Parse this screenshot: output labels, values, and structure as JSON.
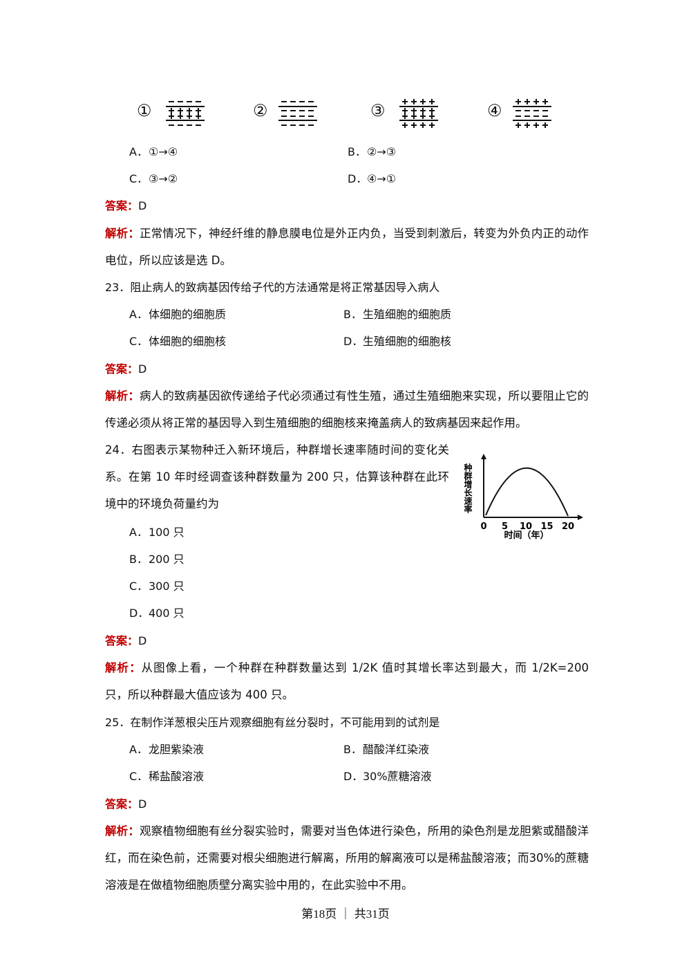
{
  "q22_tail": {
    "figure_labels": [
      "①",
      "②",
      "③",
      "④"
    ],
    "options": [
      {
        "letter": "A．",
        "text": "①→④"
      },
      {
        "letter": "B．",
        "text": "②→③"
      },
      {
        "letter": "C．",
        "text": "③→②"
      },
      {
        "letter": "D．",
        "text": "④→①"
      }
    ],
    "answer_label": "答案：",
    "answer": "D",
    "explanation_label": "解析：",
    "explanation": "正常情况下，神经纤维的静息膜电位是外正内负，当受到刺激后，转变为外负内正的动作电位，所以应该是选 D。"
  },
  "q23": {
    "stem": "23．阻止病人的致病基因传给子代的方法通常是将正常基因导入病人",
    "options": [
      {
        "letter": "A．",
        "text": "体细胞的细胞质"
      },
      {
        "letter": "B．",
        "text": "生殖细胞的细胞质"
      },
      {
        "letter": "C．",
        "text": "体细胞的细胞核"
      },
      {
        "letter": "D．",
        "text": "生殖细胞的细胞核"
      }
    ],
    "answer_label": "答案：",
    "answer": "D",
    "explanation_label": "解析：",
    "explanation": "病人的致病基因欲传递给子代必须通过有性生殖，通过生殖细胞来实现，所以要阻止它的传递必须从将正常的基因导入到生殖细胞的细胞核来掩盖病人的致病基因来起作用。"
  },
  "q24": {
    "stem": "24．右图表示某物种迁入新环境后，种群增长速率随时间的变化关系。在第 10 年时经调查该种群数量为 200 只，估算该种群在此环境中的环境负荷量约为",
    "figure": {
      "y_label": "种群增长速率",
      "x_label": "时间（年）",
      "x_ticks": [
        0,
        5,
        10,
        15,
        20
      ]
    },
    "options": [
      {
        "letter": "A．",
        "text": "100 只"
      },
      {
        "letter": "B．",
        "text": "200 只"
      },
      {
        "letter": "C．",
        "text": "300 只"
      },
      {
        "letter": "D．",
        "text": "400 只"
      }
    ],
    "answer_label": "答案：",
    "answer": "D",
    "explanation_label": "解析：",
    "explanation": "从图像上看，一个种群在种群数量达到 1/2K 值时其增长率达到最大，而 1/2K=200 只，所以种群最大值应该为 400 只。"
  },
  "q25": {
    "stem": "25．在制作洋葱根尖压片观察细胞有丝分裂时，不可能用到的试剂是",
    "options": [
      {
        "letter": "A．",
        "text": "龙胆紫染液"
      },
      {
        "letter": "B．",
        "text": "醋酸洋红染液"
      },
      {
        "letter": "C．",
        "text": "稀盐酸溶液"
      },
      {
        "letter": "D．",
        "text": "30%蔗糖溶液"
      }
    ],
    "answer_label": "答案：",
    "answer": "D",
    "explanation_label": "解析：",
    "explanation": "观察植物细胞有丝分裂实验时，需要对当色体进行染色，所用的染色剂是龙胆紫或醋酸洋红，而在染色前，还需要对根尖细胞进行解离，所用的解离液可以是稀盐酸溶液；而30%的蔗糖溶液是在做植物细胞质壁分离实验中用的，在此实验中不用。"
  },
  "footer": "第18页 ｜ 共31页"
}
